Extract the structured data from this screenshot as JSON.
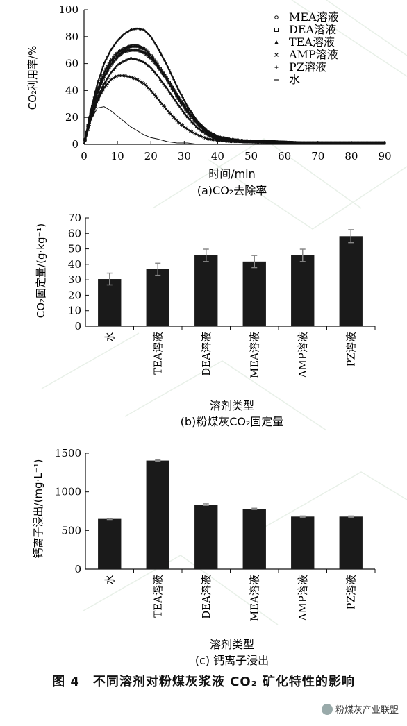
{
  "figure_caption": "图 4　不同溶剂对粉煤灰浆液 CO₂ 矿化特性的影响",
  "watermark": "粉煤灰产业联盟",
  "watermark_icon": "wechat-icon",
  "chart_data": [
    {
      "type": "line",
      "subtitle": "(a)CO₂去除率",
      "xlabel": "时间/min",
      "ylabel": "CO₂利用率/%",
      "xlim": [
        0,
        90
      ],
      "ylim": [
        0,
        100
      ],
      "xticks": [
        0,
        10,
        20,
        30,
        40,
        50,
        60,
        70,
        80,
        90
      ],
      "yticks": [
        0,
        20,
        40,
        60,
        80,
        100
      ],
      "legend_position": "top-right",
      "series": [
        {
          "name": "MEA溶液",
          "marker": "o",
          "x": [
            0,
            2,
            4,
            6,
            8,
            10,
            12,
            14,
            16,
            18,
            20,
            22,
            25,
            28,
            31,
            34,
            37,
            40,
            44,
            48,
            55,
            65,
            75,
            85,
            90
          ],
          "y": [
            0,
            22,
            38,
            50,
            59,
            65,
            69,
            70,
            70,
            68,
            64,
            58,
            48,
            36,
            25,
            16,
            9,
            5,
            3,
            2,
            2,
            1,
            1,
            1,
            1
          ]
        },
        {
          "name": "DEA溶液",
          "marker": "s",
          "x": [
            0,
            2,
            4,
            6,
            8,
            10,
            12,
            14,
            16,
            18,
            20,
            22,
            25,
            28,
            31,
            34,
            37,
            40,
            44,
            48,
            55,
            65,
            75,
            85,
            90
          ],
          "y": [
            0,
            23,
            40,
            53,
            62,
            68,
            71,
            73,
            73,
            71,
            66,
            59,
            48,
            35,
            24,
            15,
            8,
            4,
            3,
            2,
            2,
            1,
            1,
            1,
            1
          ]
        },
        {
          "name": "TEA溶液",
          "marker": "^",
          "x": [
            0,
            2,
            4,
            6,
            8,
            10,
            12,
            14,
            16,
            18,
            20,
            22,
            25,
            28,
            31,
            34,
            37,
            40,
            44,
            48,
            55,
            65,
            75,
            85,
            90
          ],
          "y": [
            0,
            20,
            34,
            45,
            53,
            59,
            62,
            64,
            63,
            61,
            57,
            51,
            41,
            30,
            20,
            12,
            7,
            4,
            3,
            2,
            2,
            1,
            1,
            1,
            1
          ]
        },
        {
          "name": "AMP溶液",
          "marker": "x",
          "x": [
            0,
            2,
            4,
            6,
            8,
            10,
            12,
            14,
            16,
            18,
            20,
            22,
            25,
            28,
            31,
            34,
            37,
            40,
            44,
            48,
            55,
            65,
            75,
            85,
            90
          ],
          "y": [
            0,
            18,
            32,
            42,
            48,
            51,
            51,
            50,
            48,
            45,
            40,
            34,
            25,
            17,
            11,
            7,
            4,
            3,
            2,
            2,
            1,
            1,
            1,
            1,
            1
          ]
        },
        {
          "name": "PZ溶液",
          "marker": "+",
          "x": [
            0,
            2,
            4,
            6,
            8,
            10,
            12,
            14,
            16,
            18,
            20,
            22,
            25,
            28,
            31,
            34,
            37,
            40,
            44,
            48,
            55,
            65,
            75,
            85,
            90
          ],
          "y": [
            0,
            25,
            45,
            60,
            70,
            77,
            82,
            85,
            86,
            85,
            80,
            72,
            58,
            42,
            28,
            17,
            10,
            6,
            4,
            3,
            2,
            1,
            1,
            1,
            1
          ]
        },
        {
          "name": "水",
          "marker": "-",
          "x": [
            0,
            2,
            4,
            6,
            8,
            10,
            12,
            14,
            16,
            18,
            20,
            22,
            25,
            28,
            31,
            34,
            37,
            40,
            45,
            50,
            60,
            70,
            80,
            90
          ],
          "y": [
            0,
            18,
            27,
            28,
            25,
            21,
            17,
            13,
            10,
            7,
            5,
            4,
            2,
            1,
            1,
            0,
            0,
            0,
            0,
            0,
            0,
            0,
            0,
            0
          ]
        }
      ]
    },
    {
      "type": "bar",
      "subtitle": "(b)粉煤灰CO₂固定量",
      "xlabel": "溶剂类型",
      "ylabel": "CO₂固定量/(g·kg⁻¹)",
      "ylim": [
        0,
        70
      ],
      "yticks": [
        0,
        10,
        20,
        30,
        40,
        50,
        60,
        70
      ],
      "categories": [
        "水",
        "TEA溶液",
        "DEA溶液",
        "MEA溶液",
        "AMP溶液",
        "PZ溶液"
      ],
      "values": [
        30.5,
        36.8,
        45.8,
        41.8,
        45.8,
        58.2
      ],
      "errors": [
        3.8,
        3.9,
        4.0,
        3.9,
        4.0,
        4.2
      ]
    },
    {
      "type": "bar",
      "subtitle": "(c) 钙离子浸出",
      "xlabel": "溶剂类型",
      "ylabel": "钙离子浸出/(mg·L⁻¹)",
      "ylim": [
        0,
        1500
      ],
      "yticks": [
        0,
        500,
        1000,
        1500
      ],
      "categories": [
        "水",
        "TEA溶液",
        "DEA溶液",
        "MEA溶液",
        "AMP溶液",
        "PZ溶液"
      ],
      "values": [
        650,
        1405,
        835,
        780,
        680,
        680
      ],
      "errors": [
        8,
        10,
        10,
        8,
        8,
        8
      ]
    }
  ]
}
